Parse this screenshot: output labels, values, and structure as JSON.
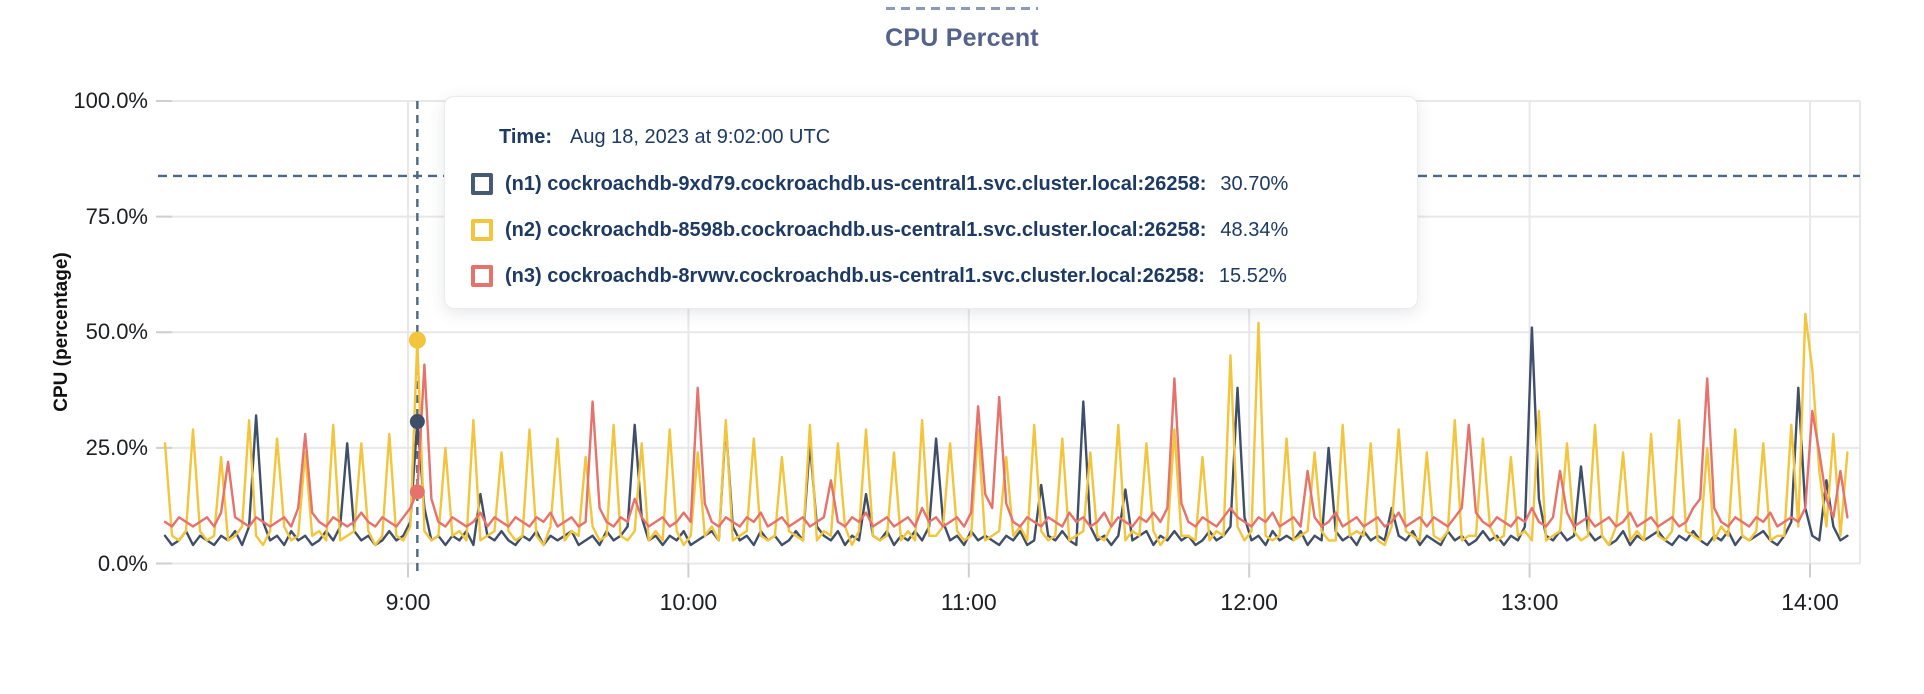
{
  "header": {
    "title": "CPU Percent"
  },
  "y_axis": {
    "title": "CPU (percentage)",
    "ticks": [
      {
        "label": "100.0%",
        "value": 100
      },
      {
        "label": "75.0%",
        "value": 75
      },
      {
        "label": "50.0%",
        "value": 50
      },
      {
        "label": "25.0%",
        "value": 25
      },
      {
        "label": "0.0%",
        "value": 0
      }
    ]
  },
  "x_axis": {
    "ticks": [
      {
        "label": "9:00",
        "hour_offset": 0
      },
      {
        "label": "10:00",
        "hour_offset": 1
      },
      {
        "label": "11:00",
        "hour_offset": 2
      },
      {
        "label": "12:00",
        "hour_offset": 3
      },
      {
        "label": "13:00",
        "hour_offset": 4
      },
      {
        "label": "14:00",
        "hour_offset": 5
      }
    ]
  },
  "tooltip": {
    "time_label": "Time:",
    "time_value": "Aug 18, 2023 at 9:02:00 UTC",
    "rows": [
      {
        "label": "(n1) cockroachdb-9xd79.cockroachdb.us-central1.svc.cluster.local:26258:",
        "value": "30.70%",
        "color": "#475a74"
      },
      {
        "label": "(n2) cockroachdb-8598b.cockroachdb.us-central1.svc.cluster.local:26258:",
        "value": "48.34%",
        "color": "#f3c53d"
      },
      {
        "label": "(n3) cockroachdb-8rvwv.cockroachdb.us-central1.svc.cluster.local:26258:",
        "value": "15.52%",
        "color": "#e5726b"
      }
    ]
  },
  "colors": {
    "title": "#54638a",
    "tooltip_text": "#1c3a63",
    "cursor_dash": "#4b6884",
    "threshold_dash": "#4b6884",
    "grid": "#e8e8e8",
    "tick_stub": "#cfcfcf"
  },
  "chart_data": {
    "type": "line",
    "title": "CPU Percent",
    "xlabel": "",
    "ylabel": "CPU (percentage)",
    "ylim": [
      0,
      100
    ],
    "grid": true,
    "x_start": "8:08",
    "x_end": "14:08",
    "x_step_seconds": 90,
    "threshold_percent": 83.8,
    "cursor": {
      "time": "Aug 18, 2023 at 9:02:00 UTC",
      "index": 36
    },
    "series": [
      {
        "name": "(n1) cockroachdb-9xd79.cockroachdb.us-central1.svc.cluster.local:26258",
        "color": "#3f4e69",
        "cursor_value": 30.7,
        "values": [
          6,
          4,
          5,
          7,
          4,
          6,
          5,
          4,
          6,
          5,
          7,
          4,
          8,
          32,
          9,
          5,
          6,
          4,
          7,
          5,
          6,
          4,
          5,
          7,
          5,
          8,
          26,
          7,
          5,
          6,
          4,
          5,
          7,
          5,
          6,
          9,
          30.7,
          12,
          5,
          6,
          4,
          6,
          5,
          7,
          4,
          15,
          6,
          5,
          7,
          5,
          4,
          6,
          5,
          7,
          4,
          6,
          5,
          6,
          7,
          4,
          5,
          6,
          4,
          7,
          5,
          6,
          8,
          30,
          10,
          5,
          6,
          4,
          6,
          5,
          7,
          4,
          5,
          6,
          7,
          5,
          30,
          8,
          5,
          6,
          4,
          7,
          5,
          6,
          4,
          5,
          7,
          5,
          26,
          8,
          6,
          5,
          7,
          4,
          6,
          5,
          15,
          6,
          5,
          7,
          4,
          6,
          5,
          7,
          5,
          8,
          27,
          9,
          5,
          6,
          4,
          7,
          5,
          6,
          5,
          4,
          6,
          5,
          7,
          4,
          5,
          17,
          6,
          5,
          7,
          5,
          4,
          35,
          8,
          5,
          6,
          4,
          6,
          16,
          5,
          6,
          7,
          4,
          6,
          5,
          7,
          5,
          6,
          4,
          5,
          7,
          5,
          6,
          8,
          38,
          10,
          5,
          6,
          4,
          7,
          5,
          6,
          5,
          7,
          4,
          6,
          5,
          25,
          7,
          5,
          6,
          4,
          7,
          5,
          6,
          5,
          12,
          6,
          5,
          7,
          4,
          6,
          5,
          4,
          7,
          5,
          6,
          4,
          5,
          7,
          5,
          6,
          4,
          6,
          5,
          8,
          51,
          14,
          6,
          5,
          7,
          5,
          6,
          21,
          7,
          5,
          6,
          4,
          5,
          7,
          4,
          6,
          5,
          6,
          7,
          5,
          4,
          6,
          5,
          7,
          5,
          4,
          6,
          5,
          7,
          4,
          6,
          5,
          6,
          7,
          5,
          4,
          6,
          9,
          38,
          12,
          6,
          5,
          18,
          8,
          5,
          6
        ]
      },
      {
        "name": "(n2) cockroachdb-8598b.cockroachdb.us-central1.svc.cluster.local:26258",
        "color": "#f3c53d",
        "cursor_value": 48.34,
        "values": [
          26,
          6,
          5,
          7,
          29,
          7,
          5,
          6,
          23,
          5,
          6,
          8,
          31,
          6,
          4,
          7,
          27,
          8,
          5,
          6,
          24,
          6,
          7,
          5,
          30,
          5,
          6,
          7,
          26,
          7,
          4,
          6,
          28,
          6,
          5,
          8,
          48.3,
          7,
          5,
          6,
          25,
          6,
          7,
          5,
          31,
          5,
          6,
          7,
          24,
          7,
          5,
          6,
          29,
          6,
          4,
          8,
          27,
          5,
          7,
          6,
          23,
          8,
          5,
          6,
          30,
          6,
          5,
          7,
          26,
          5,
          7,
          5,
          29,
          7,
          4,
          6,
          24,
          6,
          8,
          5,
          31,
          5,
          6,
          7,
          27,
          6,
          5,
          6,
          23,
          7,
          6,
          5,
          30,
          5,
          7,
          6,
          26,
          8,
          4,
          7,
          29,
          6,
          5,
          6,
          24,
          5,
          7,
          5,
          31,
          6,
          6,
          8,
          26,
          7,
          5,
          6,
          29,
          5,
          6,
          7,
          23,
          6,
          8,
          5,
          30,
          7,
          5,
          6,
          27,
          5,
          6,
          7,
          24,
          6,
          5,
          8,
          30,
          5,
          7,
          6,
          26,
          7,
          4,
          6,
          29,
          6,
          6,
          5,
          23,
          5,
          7,
          6,
          45,
          8,
          5,
          7,
          52,
          6,
          5,
          6,
          27,
          5,
          6,
          7,
          24,
          7,
          5,
          5,
          30,
          6,
          7,
          6,
          26,
          5,
          4,
          8,
          29,
          7,
          6,
          5,
          24,
          6,
          5,
          7,
          31,
          5,
          6,
          6,
          27,
          8,
          5,
          6,
          23,
          6,
          7,
          5,
          33,
          5,
          6,
          7,
          26,
          7,
          5,
          6,
          30,
          6,
          4,
          8,
          24,
          5,
          7,
          5,
          28,
          6,
          5,
          7,
          31,
          7,
          6,
          5,
          25,
          5,
          8,
          6,
          29,
          6,
          5,
          7,
          26,
          5,
          6,
          6,
          30,
          8,
          54,
          42,
          20,
          8,
          28,
          6,
          24
        ]
      },
      {
        "name": "(n3) cockroachdb-8rvwv.cockroachdb.us-central1.svc.cluster.local:26258",
        "color": "#e5726b",
        "cursor_value": 15.52,
        "values": [
          9,
          8,
          10,
          9,
          8,
          9,
          10,
          8,
          11,
          22,
          10,
          9,
          8,
          10,
          9,
          8,
          9,
          10,
          8,
          12,
          28,
          11,
          9,
          8,
          10,
          9,
          8,
          9,
          11,
          9,
          8,
          10,
          9,
          8,
          10,
          12,
          15.5,
          43,
          14,
          9,
          8,
          10,
          9,
          8,
          9,
          11,
          8,
          10,
          9,
          8,
          10,
          9,
          8,
          10,
          9,
          11,
          8,
          9,
          10,
          8,
          9,
          35,
          12,
          9,
          8,
          10,
          9,
          14,
          10,
          8,
          9,
          10,
          8,
          9,
          11,
          9,
          38,
          13,
          9,
          8,
          10,
          9,
          8,
          10,
          9,
          11,
          8,
          9,
          10,
          8,
          9,
          10,
          8,
          9,
          10,
          18,
          9,
          8,
          10,
          9,
          11,
          8,
          9,
          10,
          8,
          9,
          10,
          8,
          12,
          9,
          10,
          8,
          9,
          10,
          8,
          11,
          34,
          15,
          12,
          36,
          13,
          9,
          8,
          10,
          9,
          8,
          10,
          9,
          8,
          11,
          9,
          10,
          8,
          9,
          11,
          8,
          10,
          9,
          8,
          10,
          9,
          11,
          9,
          12,
          40,
          13,
          9,
          8,
          10,
          9,
          8,
          10,
          12,
          10,
          9,
          8,
          10,
          9,
          11,
          8,
          9,
          10,
          8,
          20,
          10,
          8,
          9,
          11,
          8,
          9,
          10,
          8,
          9,
          10,
          8,
          9,
          11,
          8,
          9,
          10,
          8,
          10,
          9,
          8,
          10,
          12,
          30,
          11,
          9,
          8,
          10,
          9,
          8,
          10,
          9,
          12,
          9,
          8,
          10,
          20,
          11,
          8,
          9,
          10,
          8,
          9,
          10,
          8,
          9,
          11,
          8,
          9,
          10,
          8,
          9,
          10,
          8,
          9,
          12,
          14,
          40,
          12,
          9,
          8,
          10,
          9,
          8,
          10,
          9,
          11,
          8,
          9,
          10,
          9,
          12,
          33,
          24,
          14,
          10,
          20,
          10
        ]
      }
    ]
  }
}
